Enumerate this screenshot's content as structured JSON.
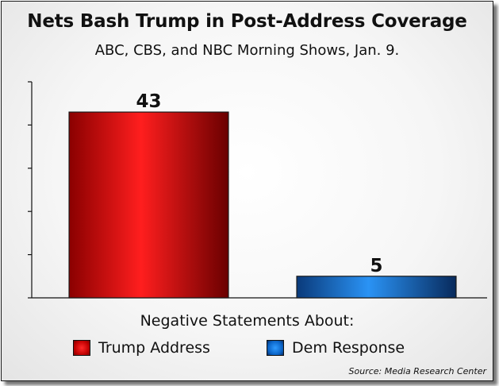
{
  "chart_data": {
    "type": "bar",
    "title": "Nets Bash Trump in Post-Address Coverage",
    "subtitle": "ABC, CBS, and NBC Morning Shows, Jan. 9.",
    "xlabel": "Negative Statements About:",
    "ylabel": "",
    "categories": [
      "Trump Address",
      "Dem Response"
    ],
    "values": [
      43,
      5
    ],
    "data_labels": [
      "43",
      "5"
    ],
    "ylim": [
      0,
      50
    ],
    "grid": false,
    "legend": {
      "placement": "bottom",
      "entries": [
        "Trump Address",
        "Dem Response"
      ]
    },
    "colors": [
      "#c00000",
      "#0a63c6"
    ],
    "source": "Source: Media Research Center"
  }
}
